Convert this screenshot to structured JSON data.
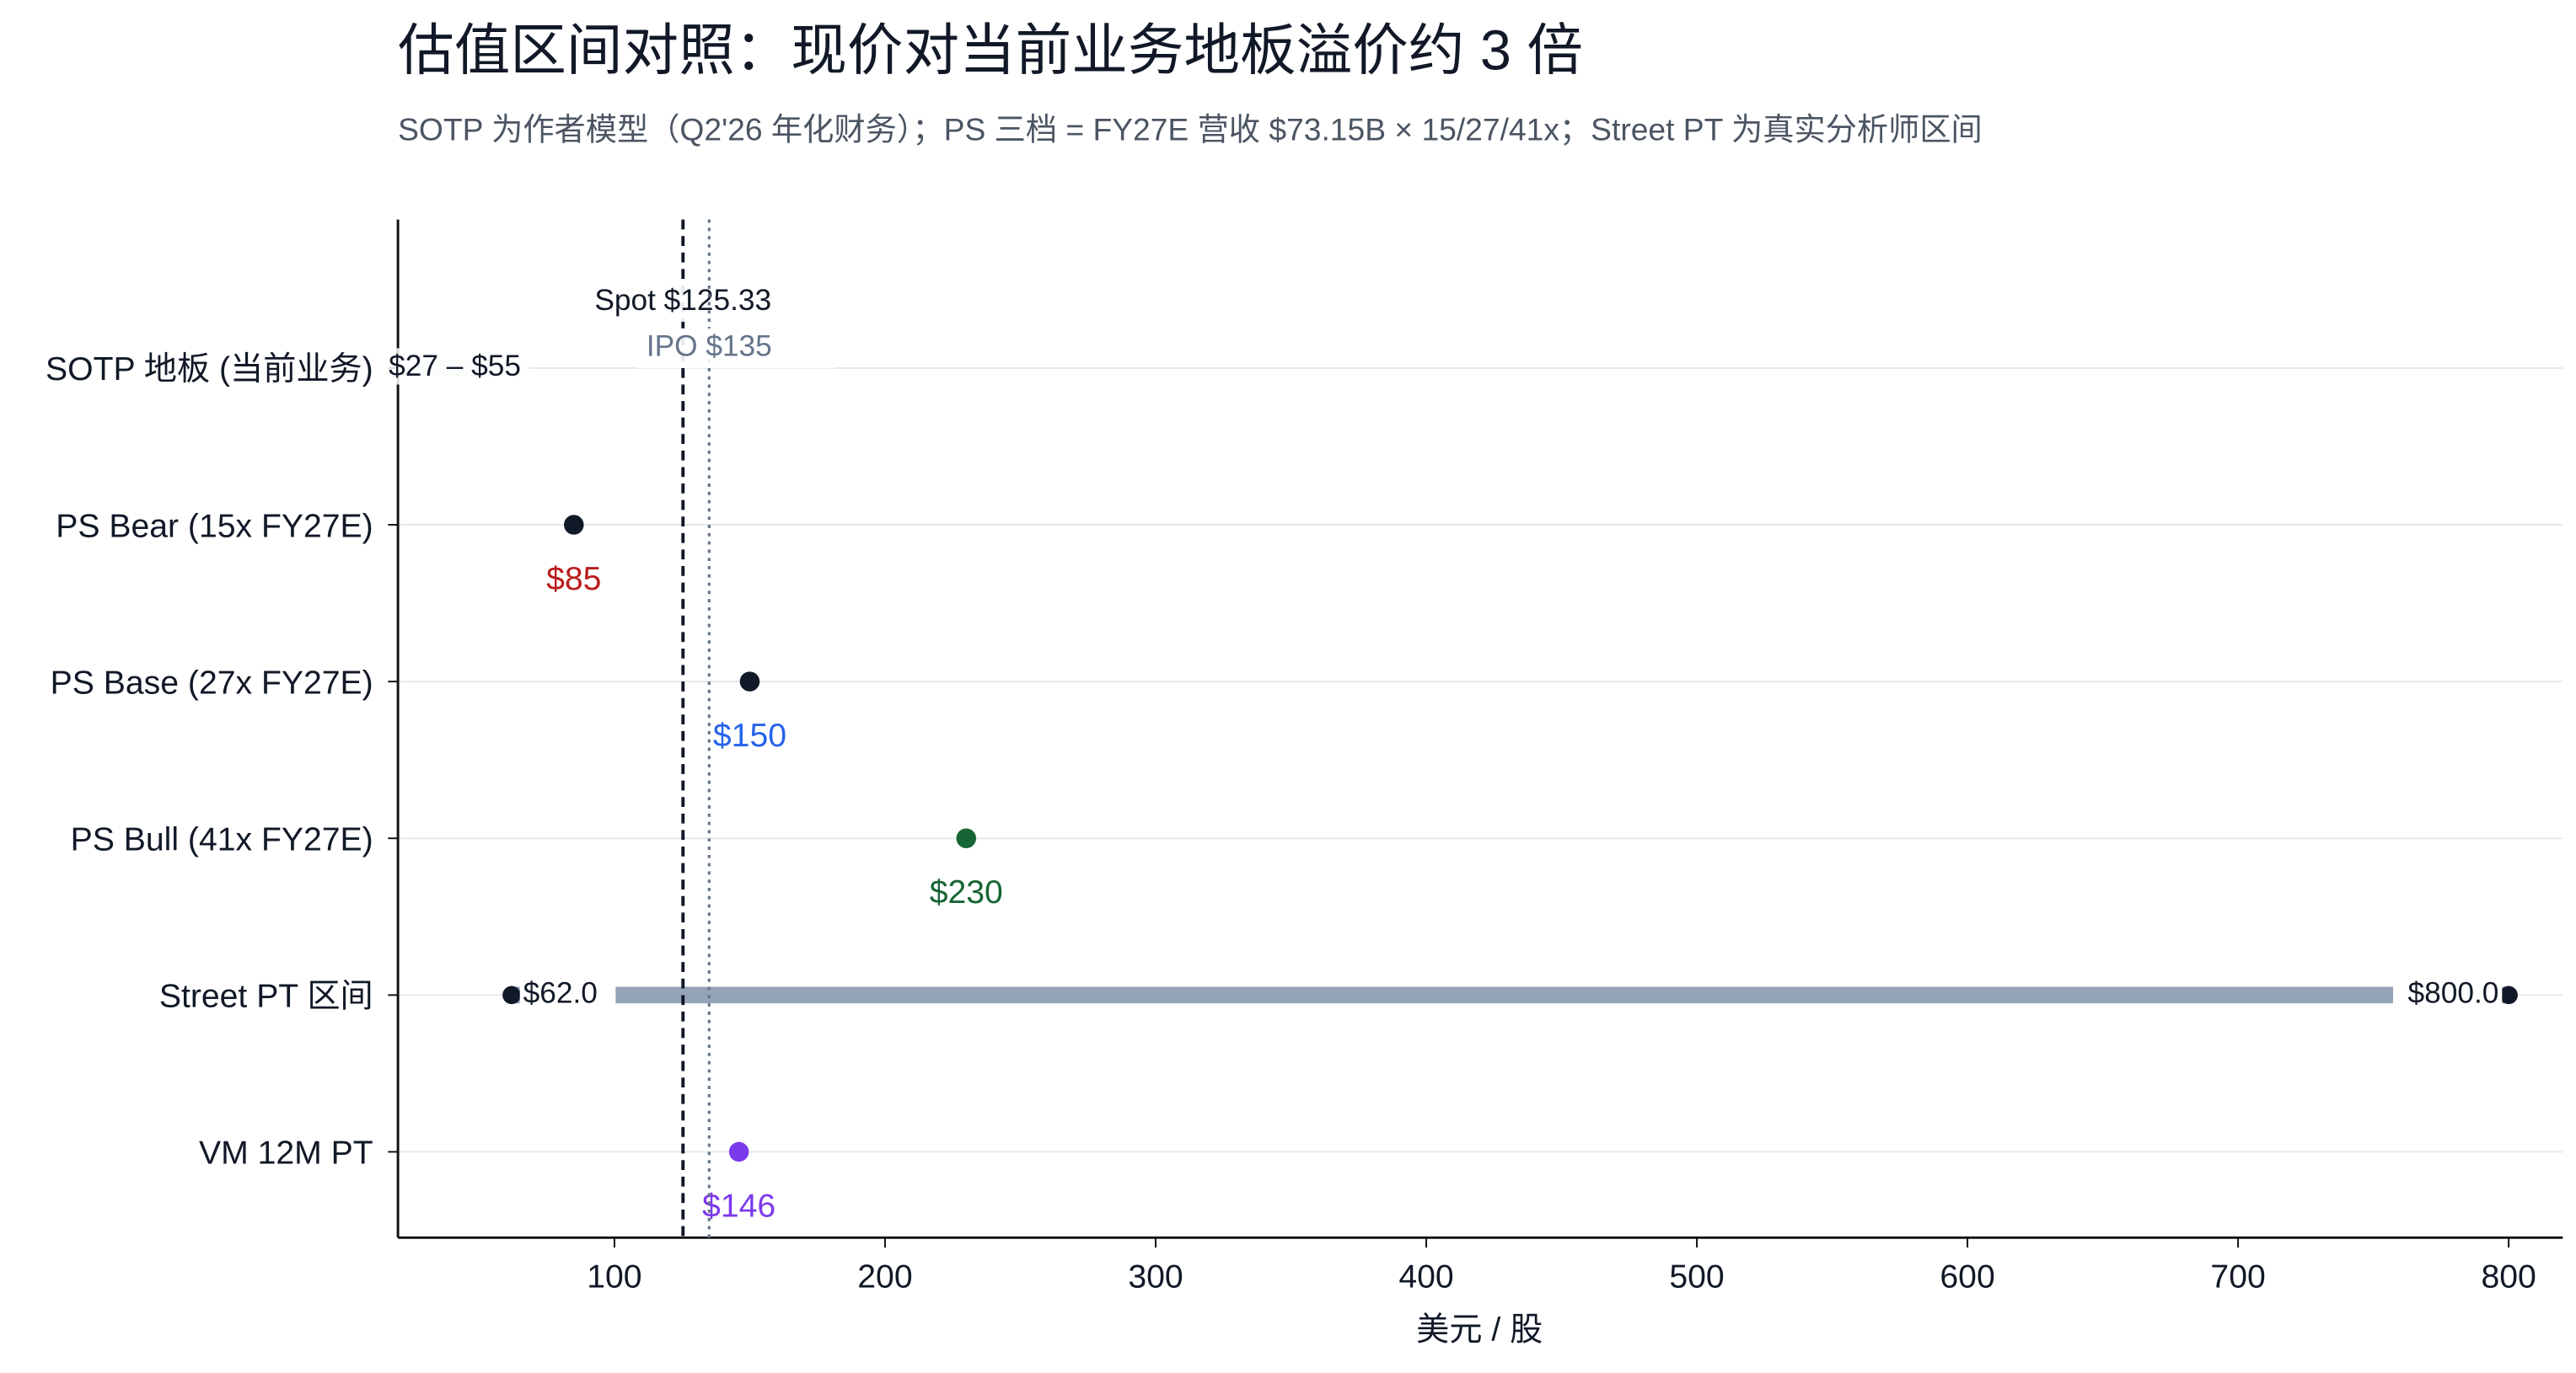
{
  "chart_data": {
    "type": "range-dot",
    "title": "估值区间对照：现价对当前业务地板溢价约 3 倍",
    "subtitle": "SOTP 为作者模型（Q2'26 年化财务）；PS 三档 = FY27E 营收 $73.15B × 15/27/41x；Street PT 为真实分析师区间",
    "xlabel": "美元 / 股",
    "xlim": [
      20,
      820
    ],
    "xticks": [
      100,
      200,
      300,
      400,
      500,
      600,
      700,
      800
    ],
    "grid": true,
    "rows": [
      {
        "label": "SOTP 地板 (当前业务)",
        "low": 27,
        "high": 55,
        "range_label": "$27 – $55",
        "color": "#e5e7eb"
      },
      {
        "label": "PS Bear (15x FY27E)",
        "value": 85,
        "value_label": "$85",
        "color": "#111827",
        "label_color": "#b91c1c"
      },
      {
        "label": "PS Base (27x FY27E)",
        "value": 150,
        "value_label": "$150",
        "color": "#111827",
        "label_color": "#2563eb"
      },
      {
        "label": "PS Bull (41x FY27E)",
        "value": 230,
        "value_label": "$230",
        "color": "#166534",
        "label_color": "#166534"
      },
      {
        "label": "Street PT 区间",
        "low": 62,
        "high": 800,
        "low_label": "$62.0",
        "high_label": "$800.0",
        "color": "#94a3b8",
        "end_color": "#111827"
      },
      {
        "label": "VM 12M PT",
        "value": 146,
        "value_label": "$146",
        "color": "#7c3aed",
        "label_color": "#7c3aed"
      }
    ],
    "reference_lines": [
      {
        "value": 125.33,
        "label": "Spot $125.33",
        "color": "#111827",
        "style": "dashed"
      },
      {
        "value": 135,
        "label": "IPO $135",
        "color": "#64748b",
        "style": "dotted"
      }
    ]
  }
}
